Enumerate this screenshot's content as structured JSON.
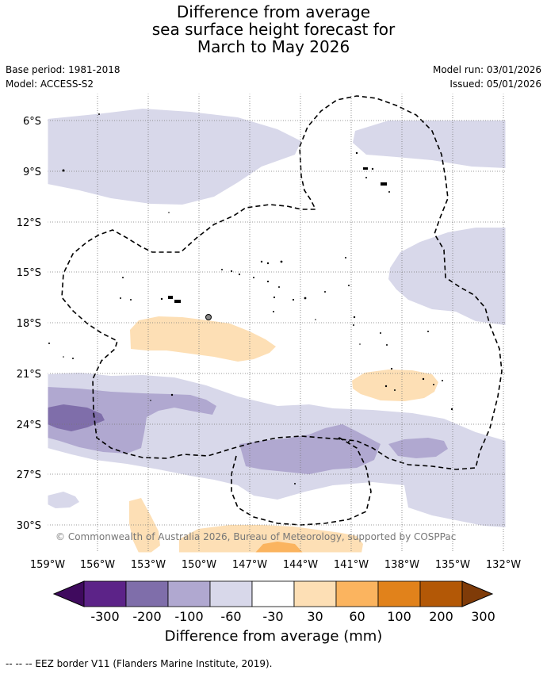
{
  "header": {
    "title_line1": "Difference from average",
    "title_line2": "sea surface height forecast for",
    "title_line3": "March to May 2026",
    "base_period": "Base period: 1981-2018",
    "model": "Model: ACCESS-S2",
    "model_run": "Model run: 03/01/2026",
    "issued": "Issued: 05/01/2026"
  },
  "map": {
    "lat_labels": [
      "6°S",
      "9°S",
      "12°S",
      "15°S",
      "18°S",
      "21°S",
      "24°S",
      "27°S",
      "30°S"
    ],
    "lon_labels": [
      "159°W",
      "156°W",
      "153°W",
      "150°W",
      "147°W",
      "144°W",
      "141°W",
      "138°W",
      "135°W",
      "132°W"
    ],
    "copyright": "© Commonwealth of Australia 2026, Bureau of Meteorology, supported by COSPPac"
  },
  "colorbar": {
    "labels": [
      "-300",
      "-200",
      "-100",
      "-60",
      "-30",
      "30",
      "60",
      "100",
      "200",
      "300"
    ],
    "colors": [
      "#3f0a5e",
      "#5c2388",
      "#7f6eaa",
      "#b0a8d0",
      "#d8d8ea",
      "#ffffff",
      "#fddfb5",
      "#fbb45f",
      "#e1821b",
      "#b35806",
      "#7f3b08"
    ],
    "title": "Difference from average (mm)"
  },
  "footer": {
    "legend": "--  --  -- EEZ border V11 (Flanders Marine Institute, 2019)."
  }
}
